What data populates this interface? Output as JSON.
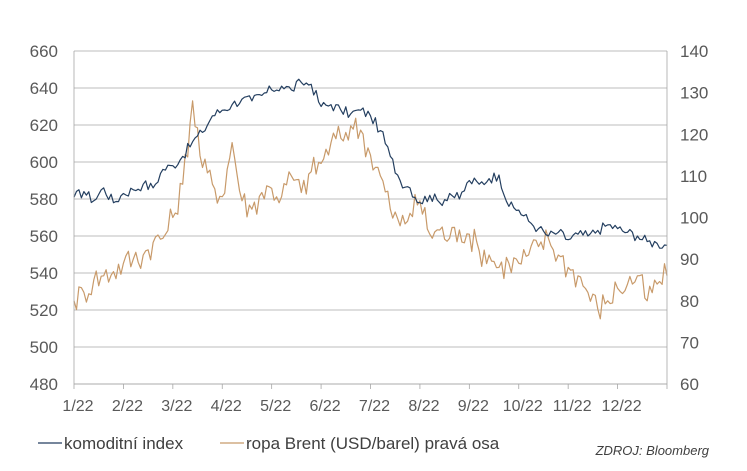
{
  "chart_data": {
    "type": "line",
    "x_ticks": [
      "1/22",
      "2/22",
      "3/22",
      "4/22",
      "5/22",
      "6/22",
      "7/22",
      "8/22",
      "9/22",
      "10/22",
      "11/22",
      "12/22"
    ],
    "y_left": {
      "min": 480,
      "max": 660,
      "ticks": [
        480,
        500,
        520,
        540,
        560,
        580,
        600,
        620,
        640,
        660
      ]
    },
    "y_right": {
      "min": 60,
      "max": 140,
      "ticks": [
        60,
        70,
        80,
        90,
        100,
        110,
        120,
        130,
        140
      ]
    },
    "grid": true,
    "legend_position": "bottom-left",
    "series": [
      {
        "name": "komoditní index",
        "axis": "left",
        "color": "#243f60",
        "values": [
          [
            0.0,
            581
          ],
          [
            0.2,
            584
          ],
          [
            0.4,
            579
          ],
          [
            0.6,
            586
          ],
          [
            0.8,
            578
          ],
          [
            1.0,
            583
          ],
          [
            1.2,
            585
          ],
          [
            1.4,
            588
          ],
          [
            1.6,
            586
          ],
          [
            1.8,
            596
          ],
          [
            2.0,
            598
          ],
          [
            2.2,
            603
          ],
          [
            2.4,
            611
          ],
          [
            2.6,
            616
          ],
          [
            2.8,
            625
          ],
          [
            3.0,
            628
          ],
          [
            3.2,
            631
          ],
          [
            3.4,
            634
          ],
          [
            3.6,
            633
          ],
          [
            3.8,
            636
          ],
          [
            4.0,
            639
          ],
          [
            4.2,
            641
          ],
          [
            4.4,
            639
          ],
          [
            4.6,
            643
          ],
          [
            4.8,
            642
          ],
          [
            5.0,
            630
          ],
          [
            5.2,
            631
          ],
          [
            5.4,
            628
          ],
          [
            5.6,
            626
          ],
          [
            5.8,
            628
          ],
          [
            6.0,
            625
          ],
          [
            6.2,
            617
          ],
          [
            6.4,
            603
          ],
          [
            6.6,
            590
          ],
          [
            6.8,
            586
          ],
          [
            7.0,
            578
          ],
          [
            7.2,
            582
          ],
          [
            7.4,
            578
          ],
          [
            7.6,
            583
          ],
          [
            7.8,
            580
          ],
          [
            8.0,
            590
          ],
          [
            8.2,
            588
          ],
          [
            8.4,
            591
          ],
          [
            8.6,
            593
          ],
          [
            8.8,
            576
          ],
          [
            9.0,
            574
          ],
          [
            9.2,
            568
          ],
          [
            9.4,
            564
          ],
          [
            9.6,
            560
          ],
          [
            9.8,
            562
          ],
          [
            10.0,
            558
          ],
          [
            10.2,
            561
          ],
          [
            10.4,
            560
          ],
          [
            10.6,
            563
          ],
          [
            10.8,
            566
          ],
          [
            11.0,
            564
          ],
          [
            11.2,
            562
          ],
          [
            11.4,
            560
          ],
          [
            11.6,
            557
          ],
          [
            11.8,
            556
          ],
          [
            12.0,
            555
          ]
        ]
      },
      {
        "name": "ropa Brent (USD/barel) pravá osa",
        "axis": "right",
        "color": "#c89a6a",
        "values": [
          [
            0.0,
            80
          ],
          [
            0.2,
            82
          ],
          [
            0.4,
            85
          ],
          [
            0.6,
            86
          ],
          [
            0.8,
            87
          ],
          [
            1.0,
            89
          ],
          [
            1.2,
            90
          ],
          [
            1.4,
            91
          ],
          [
            1.6,
            94
          ],
          [
            1.8,
            95
          ],
          [
            2.0,
            100
          ],
          [
            2.2,
            108
          ],
          [
            2.4,
            128
          ],
          [
            2.6,
            112
          ],
          [
            2.8,
            108
          ],
          [
            3.0,
            105
          ],
          [
            3.2,
            118
          ],
          [
            3.4,
            104
          ],
          [
            3.6,
            102
          ],
          [
            3.8,
            106
          ],
          [
            4.0,
            107
          ],
          [
            4.2,
            105
          ],
          [
            4.4,
            110
          ],
          [
            4.6,
            106
          ],
          [
            4.8,
            111
          ],
          [
            5.0,
            113
          ],
          [
            5.2,
            118
          ],
          [
            5.4,
            119
          ],
          [
            5.6,
            122
          ],
          [
            5.8,
            121
          ],
          [
            6.0,
            115
          ],
          [
            6.2,
            110
          ],
          [
            6.4,
            102
          ],
          [
            6.6,
            98
          ],
          [
            6.8,
            101
          ],
          [
            7.0,
            104
          ],
          [
            7.2,
            96
          ],
          [
            7.4,
            97
          ],
          [
            7.6,
            95
          ],
          [
            7.8,
            97
          ],
          [
            8.0,
            96
          ],
          [
            8.2,
            92
          ],
          [
            8.4,
            91
          ],
          [
            8.6,
            88
          ],
          [
            8.8,
            89
          ],
          [
            9.0,
            89
          ],
          [
            9.2,
            91
          ],
          [
            9.4,
            93
          ],
          [
            9.6,
            95
          ],
          [
            9.8,
            91
          ],
          [
            10.0,
            88
          ],
          [
            10.2,
            86
          ],
          [
            10.4,
            82
          ],
          [
            10.6,
            78
          ],
          [
            10.8,
            80
          ],
          [
            11.0,
            83
          ],
          [
            11.2,
            84
          ],
          [
            11.4,
            86
          ],
          [
            11.6,
            80
          ],
          [
            11.8,
            84
          ],
          [
            12.0,
            86
          ]
        ]
      }
    ]
  },
  "source": "ZDROJ: Bloomberg"
}
